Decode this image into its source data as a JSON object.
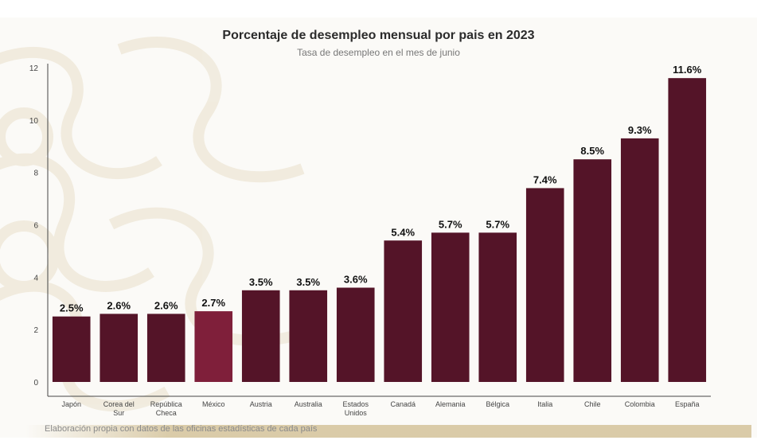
{
  "chart_data": {
    "type": "bar",
    "title": "Porcentaje de desempleo mensual por pais en 2023",
    "subtitle": "Tasa de desempleo en el mes de junio",
    "categories": [
      [
        "Japón"
      ],
      [
        "Corea del",
        "Sur"
      ],
      [
        "República",
        "Checa"
      ],
      [
        "México"
      ],
      [
        "Austria"
      ],
      [
        "Australia"
      ],
      [
        "Estados",
        "Unidos"
      ],
      [
        "Canadá"
      ],
      [
        "Alemania"
      ],
      [
        "Bélgica"
      ],
      [
        "Italia"
      ],
      [
        "Chile"
      ],
      [
        "Colombia"
      ],
      [
        "España"
      ]
    ],
    "values": [
      2.5,
      2.6,
      2.6,
      2.7,
      3.5,
      3.5,
      3.6,
      5.4,
      5.7,
      5.7,
      7.4,
      8.5,
      9.3,
      11.6
    ],
    "data_labels": [
      "2.5%",
      "2.6%",
      "2.6%",
      "2.7%",
      "3.5%",
      "3.5%",
      "3.6%",
      "5.4%",
      "5.7%",
      "5.7%",
      "7.4%",
      "8.5%",
      "9.3%",
      "11.6%"
    ],
    "highlight_index": 3,
    "ylim": [
      0,
      12
    ],
    "yticks": [
      0,
      2,
      4,
      6,
      8,
      10,
      12
    ],
    "grid": false,
    "colors": {
      "bar": "#541428",
      "highlight": "#7f1f3a",
      "axis": "#444444"
    },
    "source": "Elaboración propia con datos de las oficinas estadísticas de cada país"
  }
}
